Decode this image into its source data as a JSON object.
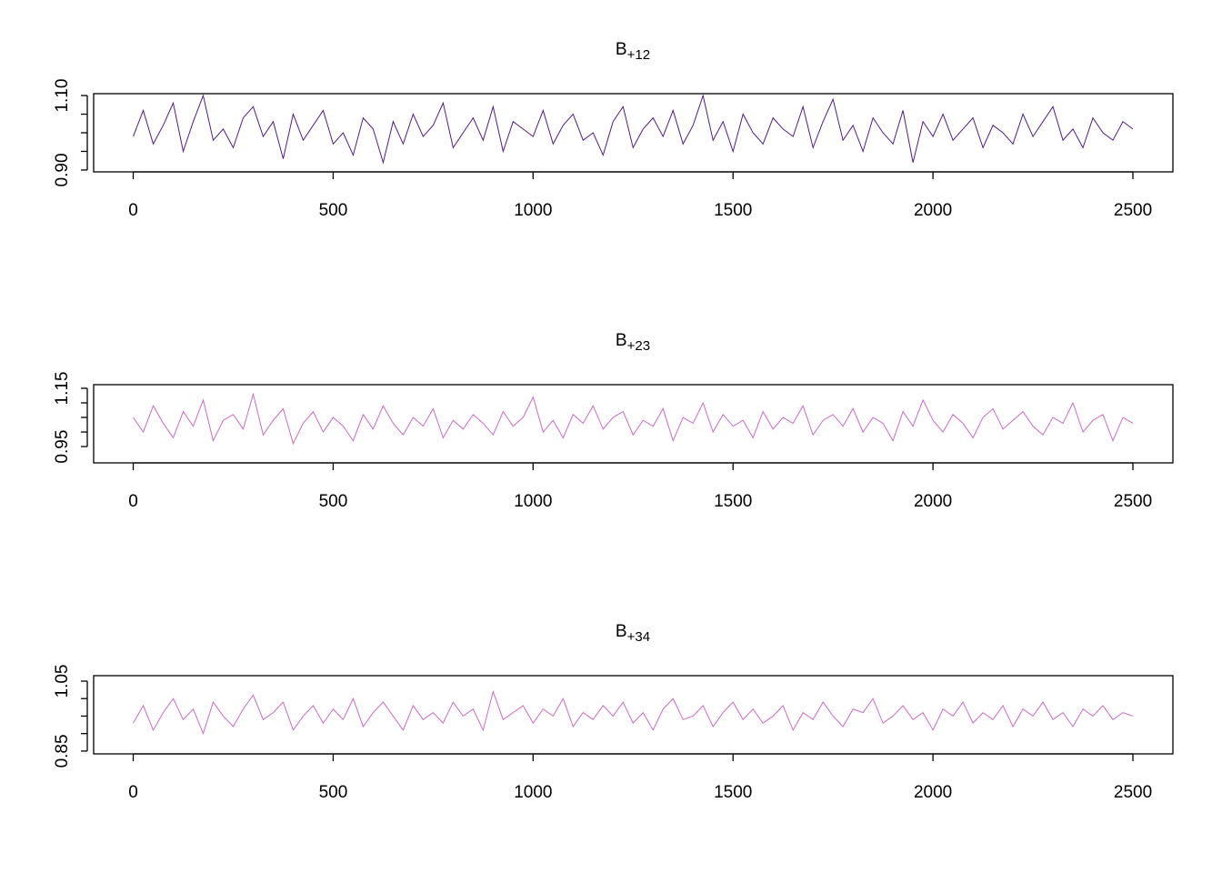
{
  "chart_data": [
    {
      "type": "line",
      "title": "B",
      "title_subscript": "+12",
      "color": "#551A8B",
      "xlim": [
        -99,
        2600
      ],
      "ylim": [
        0.895,
        1.105
      ],
      "xticks": [
        0,
        500,
        1000,
        1500,
        2000,
        2500
      ],
      "yticks": [
        {
          "value": 0.9,
          "label": "0.90"
        },
        {
          "value": 0.95,
          "label": null
        },
        {
          "value": 1.0,
          "label": null
        },
        {
          "value": 1.05,
          "label": null
        },
        {
          "value": 1.1,
          "label": "1.10"
        }
      ],
      "x": [
        0,
        25,
        50,
        75,
        100,
        125,
        150,
        175,
        200,
        225,
        250,
        275,
        300,
        325,
        350,
        375,
        400,
        425,
        450,
        475,
        500,
        525,
        550,
        575,
        600,
        625,
        650,
        675,
        700,
        725,
        750,
        775,
        800,
        825,
        850,
        875,
        900,
        925,
        950,
        975,
        1000,
        1025,
        1050,
        1075,
        1100,
        1125,
        1150,
        1175,
        1200,
        1225,
        1250,
        1275,
        1300,
        1325,
        1350,
        1375,
        1400,
        1425,
        1450,
        1475,
        1500,
        1525,
        1550,
        1575,
        1600,
        1625,
        1650,
        1675,
        1700,
        1725,
        1750,
        1775,
        1800,
        1825,
        1850,
        1875,
        1900,
        1925,
        1950,
        1975,
        2000,
        2025,
        2050,
        2075,
        2100,
        2125,
        2150,
        2175,
        2200,
        2225,
        2250,
        2275,
        2300,
        2325,
        2350,
        2375,
        2400,
        2425,
        2450,
        2475,
        2500
      ],
      "values": [
        0.99,
        1.06,
        0.97,
        1.02,
        1.08,
        0.95,
        1.03,
        1.1,
        0.98,
        1.01,
        0.96,
        1.04,
        1.07,
        0.99,
        1.03,
        0.93,
        1.05,
        0.98,
        1.02,
        1.06,
        0.97,
        1.0,
        0.94,
        1.04,
        1.01,
        0.92,
        1.03,
        0.97,
        1.05,
        0.99,
        1.02,
        1.08,
        0.96,
        1.0,
        1.04,
        0.98,
        1.07,
        0.95,
        1.03,
        1.01,
        0.99,
        1.06,
        0.97,
        1.02,
        1.05,
        0.98,
        1.0,
        0.94,
        1.03,
        1.07,
        0.96,
        1.01,
        1.04,
        0.99,
        1.06,
        0.97,
        1.02,
        1.1,
        0.98,
        1.03,
        0.95,
        1.05,
        1.0,
        0.97,
        1.04,
        1.01,
        0.99,
        1.07,
        0.96,
        1.03,
        1.09,
        0.98,
        1.02,
        0.95,
        1.04,
        1.0,
        0.97,
        1.06,
        0.92,
        1.03,
        0.99,
        1.05,
        0.98,
        1.01,
        1.04,
        0.96,
        1.02,
        1.0,
        0.97,
        1.05,
        0.99,
        1.03,
        1.07,
        0.98,
        1.01,
        0.96,
        1.04,
        1.0,
        0.98,
        1.03,
        1.01
      ]
    },
    {
      "type": "line",
      "title": "B",
      "title_subscript": "+23",
      "color": "#CD69C9",
      "xlim": [
        -99,
        2600
      ],
      "ylim": [
        0.894,
        1.1625
      ],
      "xticks": [
        0,
        500,
        1000,
        1500,
        2000,
        2500
      ],
      "yticks": [
        {
          "value": 0.95,
          "label": "0.95"
        },
        {
          "value": 1.0,
          "label": null
        },
        {
          "value": 1.05,
          "label": null
        },
        {
          "value": 1.1,
          "label": null
        },
        {
          "value": 1.15,
          "label": "1.15"
        }
      ],
      "x": [
        0,
        25,
        50,
        75,
        100,
        125,
        150,
        175,
        200,
        225,
        250,
        275,
        300,
        325,
        350,
        375,
        400,
        425,
        450,
        475,
        500,
        525,
        550,
        575,
        600,
        625,
        650,
        675,
        700,
        725,
        750,
        775,
        800,
        825,
        850,
        875,
        900,
        925,
        950,
        975,
        1000,
        1025,
        1050,
        1075,
        1100,
        1125,
        1150,
        1175,
        1200,
        1225,
        1250,
        1275,
        1300,
        1325,
        1350,
        1375,
        1400,
        1425,
        1450,
        1475,
        1500,
        1525,
        1550,
        1575,
        1600,
        1625,
        1650,
        1675,
        1700,
        1725,
        1750,
        1775,
        1800,
        1825,
        1850,
        1875,
        1900,
        1925,
        1950,
        1975,
        2000,
        2025,
        2050,
        2075,
        2100,
        2125,
        2150,
        2175,
        2200,
        2225,
        2250,
        2275,
        2300,
        2325,
        2350,
        2375,
        2400,
        2425,
        2450,
        2475,
        2500
      ],
      "values": [
        1.05,
        1.0,
        1.09,
        1.03,
        0.98,
        1.07,
        1.02,
        1.11,
        0.97,
        1.04,
        1.06,
        1.01,
        1.13,
        0.99,
        1.04,
        1.08,
        0.96,
        1.03,
        1.07,
        1.0,
        1.05,
        1.02,
        0.97,
        1.06,
        1.01,
        1.09,
        1.03,
        0.99,
        1.05,
        1.02,
        1.08,
        0.98,
        1.04,
        1.01,
        1.06,
        1.03,
        0.99,
        1.07,
        1.02,
        1.05,
        1.12,
        1.0,
        1.04,
        0.98,
        1.06,
        1.03,
        1.09,
        1.01,
        1.05,
        1.07,
        0.99,
        1.04,
        1.02,
        1.08,
        0.97,
        1.05,
        1.03,
        1.1,
        1.0,
        1.06,
        1.02,
        1.04,
        0.98,
        1.07,
        1.01,
        1.05,
        1.03,
        1.09,
        0.99,
        1.04,
        1.06,
        1.02,
        1.08,
        1.0,
        1.05,
        1.03,
        0.97,
        1.07,
        1.02,
        1.11,
        1.04,
        1.0,
        1.06,
        1.03,
        0.98,
        1.05,
        1.08,
        1.01,
        1.04,
        1.07,
        1.02,
        0.99,
        1.05,
        1.03,
        1.1,
        1.0,
        1.04,
        1.06,
        0.97,
        1.05,
        1.03
      ]
    },
    {
      "type": "line",
      "title": "B",
      "title_subscript": "+34",
      "color": "#CD69C9",
      "xlim": [
        -99,
        2600
      ],
      "ylim": [
        0.842,
        1.0656
      ],
      "xticks": [
        0,
        500,
        1000,
        1500,
        2000,
        2500
      ],
      "yticks": [
        {
          "value": 0.85,
          "label": "0.85"
        },
        {
          "value": 0.9,
          "label": null
        },
        {
          "value": 0.95,
          "label": null
        },
        {
          "value": 1.0,
          "label": null
        },
        {
          "value": 1.05,
          "label": "1.05"
        }
      ],
      "x": [
        0,
        25,
        50,
        75,
        100,
        125,
        150,
        175,
        200,
        225,
        250,
        275,
        300,
        325,
        350,
        375,
        400,
        425,
        450,
        475,
        500,
        525,
        550,
        575,
        600,
        625,
        650,
        675,
        700,
        725,
        750,
        775,
        800,
        825,
        850,
        875,
        900,
        925,
        950,
        975,
        1000,
        1025,
        1050,
        1075,
        1100,
        1125,
        1150,
        1175,
        1200,
        1225,
        1250,
        1275,
        1300,
        1325,
        1350,
        1375,
        1400,
        1425,
        1450,
        1475,
        1500,
        1525,
        1550,
        1575,
        1600,
        1625,
        1650,
        1675,
        1700,
        1725,
        1750,
        1775,
        1800,
        1825,
        1850,
        1875,
        1900,
        1925,
        1950,
        1975,
        2000,
        2025,
        2050,
        2075,
        2100,
        2125,
        2150,
        2175,
        2200,
        2225,
        2250,
        2275,
        2300,
        2325,
        2350,
        2375,
        2400,
        2425,
        2450,
        2475,
        2500
      ],
      "values": [
        0.93,
        0.98,
        0.91,
        0.96,
        1.0,
        0.94,
        0.97,
        0.9,
        0.99,
        0.95,
        0.92,
        0.97,
        1.01,
        0.94,
        0.96,
        0.99,
        0.91,
        0.95,
        0.98,
        0.93,
        0.97,
        0.94,
        1.0,
        0.92,
        0.96,
        0.99,
        0.95,
        0.91,
        0.98,
        0.94,
        0.96,
        0.93,
        0.99,
        0.95,
        0.97,
        0.91,
        1.02,
        0.94,
        0.96,
        0.98,
        0.93,
        0.97,
        0.95,
        1.0,
        0.92,
        0.96,
        0.94,
        0.98,
        0.95,
        0.99,
        0.93,
        0.96,
        0.91,
        0.97,
        1.0,
        0.94,
        0.95,
        0.98,
        0.92,
        0.96,
        0.99,
        0.94,
        0.97,
        0.93,
        0.95,
        0.98,
        0.91,
        0.96,
        0.94,
        0.99,
        0.95,
        0.92,
        0.97,
        0.96,
        1.0,
        0.93,
        0.95,
        0.98,
        0.94,
        0.96,
        0.91,
        0.97,
        0.95,
        0.99,
        0.93,
        0.96,
        0.94,
        0.98,
        0.92,
        0.97,
        0.95,
        0.99,
        0.94,
        0.96,
        0.92,
        0.97,
        0.95,
        0.98,
        0.94,
        0.96,
        0.95
      ]
    }
  ]
}
